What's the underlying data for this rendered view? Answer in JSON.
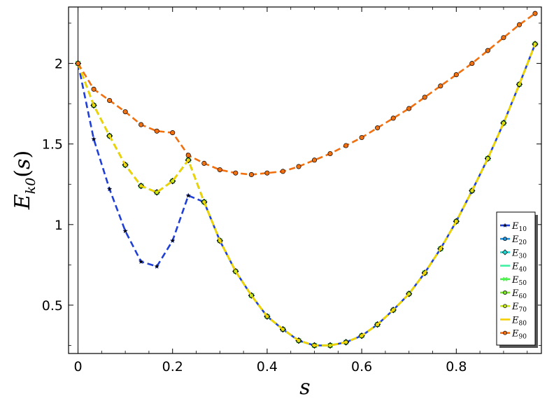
{
  "chart_data": {
    "type": "line",
    "title": "",
    "xlabel": "s",
    "ylabel": "E_{k0}(s)",
    "xlim": [
      -0.02,
      0.98
    ],
    "ylim": [
      0.2,
      2.35
    ],
    "x_ticks": [
      0,
      0.2,
      0.4,
      0.6,
      0.8
    ],
    "x_tick_labels": [
      "0",
      "0.2",
      "0.4",
      "0.6",
      "0.8"
    ],
    "y_ticks": [
      0.5,
      1,
      1.5,
      2
    ],
    "y_tick_labels": [
      "0.5",
      "1",
      "1.5",
      "2"
    ],
    "grid": false,
    "legend_position": "bottom-right",
    "x": [
      0,
      0.0333,
      0.0667,
      0.1,
      0.1333,
      0.1667,
      0.2,
      0.2333,
      0.2667,
      0.3,
      0.3333,
      0.3667,
      0.4,
      0.4333,
      0.4667,
      0.5,
      0.5333,
      0.5667,
      0.6,
      0.6333,
      0.6667,
      0.7,
      0.7333,
      0.7667,
      0.8,
      0.8333,
      0.8667,
      0.9,
      0.9333,
      0.9667
    ],
    "series": [
      {
        "name": "E10",
        "label_base": "E",
        "label_sub": "10",
        "color": "#1f3fd6",
        "marker": "star",
        "values": [
          2.0,
          1.53,
          1.22,
          0.96,
          0.77,
          0.74,
          0.9,
          1.18,
          1.14,
          0.9,
          0.71,
          0.56,
          0.43,
          0.35,
          0.28,
          0.25,
          0.25,
          0.27,
          0.31,
          0.38,
          0.47,
          0.57,
          0.7,
          0.85,
          1.02,
          1.21,
          1.41,
          1.63,
          1.87,
          2.12
        ]
      },
      {
        "name": "E20",
        "label_base": "E",
        "label_sub": "20",
        "color": "#1f8fd6",
        "marker": "circle",
        "values": [
          2.0,
          1.74,
          1.55,
          1.37,
          1.24,
          1.2,
          1.27,
          1.4,
          1.14,
          0.9,
          0.71,
          0.56,
          0.43,
          0.35,
          0.28,
          0.25,
          0.25,
          0.27,
          0.31,
          0.38,
          0.47,
          0.57,
          0.7,
          0.85,
          1.02,
          1.21,
          1.41,
          1.63,
          1.87,
          2.12
        ]
      },
      {
        "name": "E30",
        "label_base": "E",
        "label_sub": "30",
        "color": "#19d6d0",
        "marker": "diamond",
        "values": [
          2.0,
          1.74,
          1.55,
          1.37,
          1.24,
          1.2,
          1.27,
          1.4,
          1.14,
          0.9,
          0.71,
          0.56,
          0.43,
          0.35,
          0.28,
          0.25,
          0.25,
          0.27,
          0.31,
          0.38,
          0.47,
          0.57,
          0.7,
          0.85,
          1.02,
          1.21,
          1.41,
          1.63,
          1.87,
          2.12
        ]
      },
      {
        "name": "E40",
        "label_base": "E",
        "label_sub": "40",
        "color": "#3ef0a0",
        "marker": "none",
        "values": [
          2.0,
          1.74,
          1.55,
          1.37,
          1.24,
          1.2,
          1.27,
          1.4,
          1.14,
          0.9,
          0.71,
          0.56,
          0.43,
          0.35,
          0.28,
          0.25,
          0.25,
          0.27,
          0.31,
          0.38,
          0.47,
          0.57,
          0.7,
          0.85,
          1.02,
          1.21,
          1.41,
          1.63,
          1.87,
          2.12
        ]
      },
      {
        "name": "E50",
        "label_base": "E",
        "label_sub": "50",
        "color": "#4cf04c",
        "marker": "x",
        "values": [
          2.0,
          1.74,
          1.55,
          1.37,
          1.24,
          1.2,
          1.27,
          1.4,
          1.14,
          0.9,
          0.71,
          0.56,
          0.43,
          0.35,
          0.28,
          0.25,
          0.25,
          0.27,
          0.31,
          0.38,
          0.47,
          0.57,
          0.7,
          0.85,
          1.02,
          1.21,
          1.41,
          1.63,
          1.87,
          2.12
        ]
      },
      {
        "name": "E60",
        "label_base": "E",
        "label_sub": "60",
        "color": "#7be02a",
        "marker": "circle",
        "values": [
          2.0,
          1.74,
          1.55,
          1.37,
          1.24,
          1.2,
          1.27,
          1.4,
          1.14,
          0.9,
          0.71,
          0.56,
          0.43,
          0.35,
          0.28,
          0.25,
          0.25,
          0.27,
          0.31,
          0.38,
          0.47,
          0.57,
          0.7,
          0.85,
          1.02,
          1.21,
          1.41,
          1.63,
          1.87,
          2.12
        ]
      },
      {
        "name": "E70",
        "label_base": "E",
        "label_sub": "70",
        "color": "#c8e81c",
        "marker": "hexagon",
        "values": [
          2.0,
          1.74,
          1.55,
          1.37,
          1.24,
          1.2,
          1.27,
          1.4,
          1.14,
          0.9,
          0.71,
          0.56,
          0.43,
          0.35,
          0.28,
          0.25,
          0.25,
          0.27,
          0.31,
          0.38,
          0.47,
          0.57,
          0.7,
          0.85,
          1.02,
          1.21,
          1.41,
          1.63,
          1.87,
          2.12
        ]
      },
      {
        "name": "E80",
        "label_base": "E",
        "label_sub": "80",
        "color": "#f5d000",
        "marker": "none",
        "values": [
          2.0,
          1.74,
          1.55,
          1.37,
          1.24,
          1.2,
          1.27,
          1.4,
          1.14,
          0.9,
          0.71,
          0.56,
          0.43,
          0.35,
          0.28,
          0.25,
          0.25,
          0.27,
          0.31,
          0.38,
          0.47,
          0.57,
          0.7,
          0.85,
          1.02,
          1.21,
          1.41,
          1.63,
          1.87,
          2.12
        ]
      },
      {
        "name": "E90",
        "label_base": "E",
        "label_sub": "90",
        "color": "#f07010",
        "marker": "circle",
        "values": [
          2.0,
          1.84,
          1.77,
          1.7,
          1.62,
          1.58,
          1.57,
          1.43,
          1.38,
          1.34,
          1.32,
          1.31,
          1.32,
          1.33,
          1.36,
          1.4,
          1.44,
          1.49,
          1.54,
          1.6,
          1.66,
          1.72,
          1.79,
          1.86,
          1.93,
          2.0,
          2.08,
          2.16,
          2.24,
          2.31
        ]
      }
    ]
  }
}
